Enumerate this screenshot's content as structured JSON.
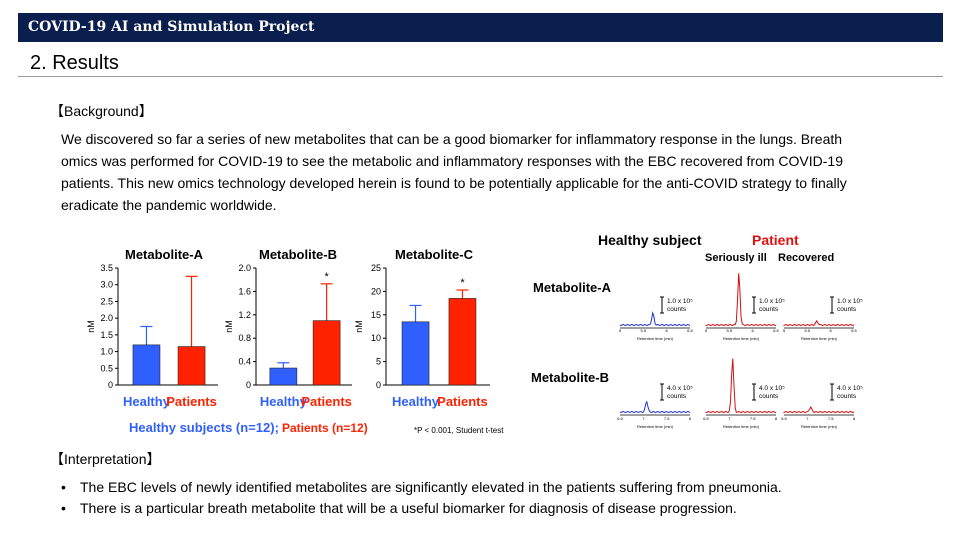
{
  "header": {
    "banner": "COVID-19 AI and Simulation Project",
    "title": "2. Results"
  },
  "background": {
    "heading": "【Background】",
    "lines": [
      "We discovered so far a series of new metabolites that can be a good biomarker for inflammatory response in the lungs.  Breath",
      "omics was performed for COVID-19 to see the metabolic and inflammatory responses with the EBC recovered from COVID-19",
      "patients. This new omics technology developed herein is found to be potentially applicable for the anti-COVID strategy to finally",
      "eradicate the pandemic worldwide."
    ]
  },
  "interpretation": {
    "heading": "【Interpretation】",
    "bullets": [
      "The EBC levels of newly identified metabolites are significantly elevated in the patients suffering from pneumonia.",
      "There is a particular breath metabolite that will be a useful biomarker for diagnosis of disease progression."
    ]
  },
  "bar_legend": {
    "healthy": "Healthy subjects (n=12);",
    "patients": "Patients (n=12)",
    "stats": "*P < 0.001,  Student  t-test"
  },
  "chart_data": [
    {
      "type": "bar",
      "title": "Metabolite-A",
      "ylabel": "nM",
      "categories": [
        "Healthy",
        "Patients"
      ],
      "values": [
        1.2,
        1.15
      ],
      "error_upper": [
        1.75,
        3.25
      ],
      "ylim": [
        0,
        3.5
      ],
      "yticks": [
        "0",
        "0.5",
        "1.0",
        "1.5",
        "2.0",
        "2.5",
        "3.0",
        "3.5"
      ],
      "significance": [
        null,
        null
      ],
      "colors": [
        "#2f5fff",
        "#ff2200"
      ]
    },
    {
      "type": "bar",
      "title": "Metabolite-B",
      "ylabel": "nM",
      "categories": [
        "Healthy",
        "Patients"
      ],
      "values": [
        0.29,
        1.1
      ],
      "error_upper": [
        0.38,
        1.73
      ],
      "ylim": [
        0,
        2.0
      ],
      "yticks": [
        "0",
        "0.4",
        "0.8",
        "1.2",
        "1.6",
        "2.0"
      ],
      "significance": [
        null,
        "*"
      ],
      "colors": [
        "#2f5fff",
        "#ff2200"
      ]
    },
    {
      "type": "bar",
      "title": "Metabolite-C",
      "ylabel": "nM",
      "categories": [
        "Healthy",
        "Patients"
      ],
      "values": [
        13.5,
        18.5
      ],
      "error_upper": [
        17.0,
        20.3
      ],
      "ylim": [
        0,
        25
      ],
      "yticks": [
        "0",
        "5",
        "10",
        "15",
        "20",
        "25"
      ],
      "significance": [
        null,
        "*"
      ],
      "colors": [
        "#2f5fff",
        "#ff2200"
      ]
    }
  ],
  "chromatograms": {
    "healthy_label": "Healthy subject",
    "patient_label": "Patient",
    "seriously_ill": "Seriously ill",
    "recovered": "Recovered",
    "xlabel": "Retention time (min)",
    "rows": [
      {
        "name": "Metabolite-A",
        "ticks": [
          "5",
          "5.5",
          "6",
          "6.5"
        ],
        "scales": [
          "1.0 x 10⁵ counts",
          "1.0 x 10⁵ counts",
          "1.0 x 10⁵ counts"
        ],
        "peaks": [
          0.22,
          0.95,
          0.07
        ]
      },
      {
        "name": "Metabolite-B",
        "ticks": [
          "6.5",
          "7",
          "7.5",
          "8"
        ],
        "scales": [
          "4.0 x 10⁵ counts",
          "4.0 x 10⁵ counts",
          "4.0 x 10⁵ counts"
        ],
        "peaks": [
          0.2,
          1.0,
          0.09
        ]
      }
    ],
    "colors": {
      "healthy": "#2233cc",
      "patient": "#d01010"
    }
  }
}
